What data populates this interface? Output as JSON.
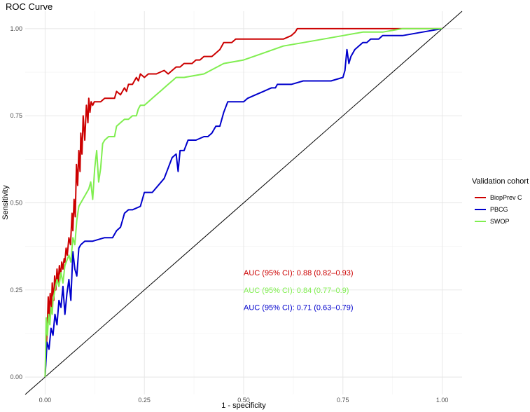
{
  "chart_data": {
    "type": "line",
    "title": "ROC Curve",
    "xlabel": "1 - specificity",
    "ylabel": "Sensitivity",
    "xlim": [
      -0.05,
      1.05
    ],
    "ylim": [
      -0.05,
      1.05
    ],
    "x_ticks": [
      0,
      0.25,
      0.5,
      0.75,
      1
    ],
    "x_tick_labels": [
      "0.00",
      "0.25",
      "0.50",
      "0.75",
      "1.00"
    ],
    "y_ticks": [
      0,
      0.25,
      0.5,
      0.75,
      1
    ],
    "y_tick_labels": [
      "0.00",
      "0.25",
      "0.50",
      "0.75",
      "1.00"
    ],
    "grid": true,
    "legend": {
      "title": "Validation cohort",
      "placement": "right"
    },
    "reference_line": {
      "x": [
        -0.05,
        1.05
      ],
      "y": [
        -0.05,
        1.05
      ],
      "color": "#000000"
    },
    "series": [
      {
        "name": "BiopPrev C",
        "color": "#cc0000",
        "x": [
          0,
          0.003,
          0.006,
          0.008,
          0.01,
          0.013,
          0.016,
          0.018,
          0.022,
          0.024,
          0.027,
          0.03,
          0.033,
          0.036,
          0.039,
          0.042,
          0.045,
          0.048,
          0.05,
          0.053,
          0.056,
          0.06,
          0.064,
          0.068,
          0.07,
          0.073,
          0.076,
          0.079,
          0.082,
          0.085,
          0.088,
          0.09,
          0.093,
          0.096,
          0.1,
          0.104,
          0.108,
          0.11,
          0.113,
          0.116,
          0.12,
          0.124,
          0.128,
          0.13,
          0.135,
          0.14,
          0.15,
          0.16,
          0.17,
          0.175,
          0.18,
          0.19,
          0.2,
          0.205,
          0.21,
          0.22,
          0.23,
          0.235,
          0.24,
          0.25,
          0.26,
          0.28,
          0.3,
          0.31,
          0.32,
          0.33,
          0.34,
          0.35,
          0.36,
          0.37,
          0.38,
          0.39,
          0.4,
          0.42,
          0.43,
          0.44,
          0.45,
          0.46,
          0.47,
          0.48,
          0.5,
          0.55,
          0.6,
          0.62,
          0.63,
          0.635,
          0.65,
          0.7,
          0.8,
          1.0
        ],
        "y": [
          0,
          0.08,
          0.16,
          0.23,
          0.17,
          0.24,
          0.2,
          0.27,
          0.22,
          0.29,
          0.25,
          0.31,
          0.27,
          0.32,
          0.29,
          0.33,
          0.31,
          0.34,
          0.33,
          0.37,
          0.35,
          0.4,
          0.38,
          0.47,
          0.42,
          0.51,
          0.46,
          0.61,
          0.55,
          0.65,
          0.59,
          0.7,
          0.64,
          0.75,
          0.68,
          0.78,
          0.73,
          0.8,
          0.76,
          0.79,
          0.78,
          0.79,
          0.79,
          0.79,
          0.79,
          0.79,
          0.8,
          0.8,
          0.8,
          0.8,
          0.82,
          0.81,
          0.83,
          0.82,
          0.84,
          0.84,
          0.86,
          0.85,
          0.87,
          0.86,
          0.87,
          0.87,
          0.88,
          0.87,
          0.88,
          0.89,
          0.89,
          0.9,
          0.9,
          0.9,
          0.91,
          0.91,
          0.92,
          0.92,
          0.93,
          0.94,
          0.96,
          0.96,
          0.96,
          0.97,
          0.97,
          0.97,
          0.97,
          0.98,
          0.99,
          1.0,
          1.0,
          1.0,
          1.0,
          1.0
        ]
      },
      {
        "name": "PBCG",
        "color": "#0000cc",
        "x": [
          0,
          0.005,
          0.01,
          0.015,
          0.02,
          0.025,
          0.03,
          0.035,
          0.04,
          0.045,
          0.05,
          0.055,
          0.06,
          0.065,
          0.07,
          0.075,
          0.08,
          0.085,
          0.09,
          0.1,
          0.12,
          0.15,
          0.17,
          0.18,
          0.19,
          0.195,
          0.2,
          0.21,
          0.22,
          0.24,
          0.25,
          0.27,
          0.3,
          0.31,
          0.32,
          0.33,
          0.335,
          0.34,
          0.35,
          0.36,
          0.38,
          0.4,
          0.41,
          0.42,
          0.43,
          0.44,
          0.45,
          0.46,
          0.47,
          0.48,
          0.5,
          0.51,
          0.53,
          0.55,
          0.57,
          0.58,
          0.585,
          0.6,
          0.62,
          0.65,
          0.7,
          0.72,
          0.75,
          0.755,
          0.76,
          0.765,
          0.77,
          0.78,
          0.8,
          0.81,
          0.82,
          0.83,
          0.84,
          0.85,
          0.9,
          0.95,
          1.0
        ],
        "y": [
          0,
          0.1,
          0.08,
          0.14,
          0.12,
          0.18,
          0.15,
          0.22,
          0.2,
          0.26,
          0.18,
          0.24,
          0.28,
          0.22,
          0.36,
          0.31,
          0.29,
          0.37,
          0.38,
          0.39,
          0.39,
          0.4,
          0.4,
          0.42,
          0.43,
          0.45,
          0.47,
          0.48,
          0.48,
          0.49,
          0.53,
          0.53,
          0.57,
          0.6,
          0.63,
          0.64,
          0.59,
          0.65,
          0.65,
          0.68,
          0.68,
          0.69,
          0.69,
          0.7,
          0.72,
          0.72,
          0.76,
          0.79,
          0.79,
          0.79,
          0.79,
          0.8,
          0.81,
          0.82,
          0.83,
          0.83,
          0.84,
          0.84,
          0.84,
          0.85,
          0.85,
          0.85,
          0.86,
          0.88,
          0.94,
          0.9,
          0.92,
          0.94,
          0.96,
          0.96,
          0.97,
          0.97,
          0.97,
          0.98,
          0.98,
          0.99,
          1.0
        ]
      },
      {
        "name": "SWOP",
        "color": "#80ee50",
        "x": [
          0,
          0.003,
          0.006,
          0.009,
          0.012,
          0.015,
          0.018,
          0.02,
          0.025,
          0.03,
          0.035,
          0.04,
          0.045,
          0.05,
          0.06,
          0.065,
          0.07,
          0.075,
          0.08,
          0.085,
          0.09,
          0.1,
          0.11,
          0.115,
          0.12,
          0.125,
          0.13,
          0.135,
          0.14,
          0.145,
          0.15,
          0.16,
          0.17,
          0.175,
          0.18,
          0.19,
          0.2,
          0.21,
          0.22,
          0.23,
          0.235,
          0.24,
          0.25,
          0.26,
          0.27,
          0.28,
          0.29,
          0.3,
          0.31,
          0.32,
          0.33,
          0.34,
          0.35,
          0.4,
          0.45,
          0.5,
          0.55,
          0.6,
          0.65,
          0.7,
          0.75,
          0.8,
          0.85,
          0.9,
          1.0
        ],
        "y": [
          0,
          0.17,
          0.12,
          0.18,
          0.15,
          0.2,
          0.18,
          0.22,
          0.25,
          0.28,
          0.26,
          0.3,
          0.27,
          0.32,
          0.35,
          0.33,
          0.4,
          0.38,
          0.45,
          0.49,
          0.5,
          0.52,
          0.54,
          0.56,
          0.51,
          0.6,
          0.65,
          0.56,
          0.6,
          0.67,
          0.68,
          0.69,
          0.69,
          0.69,
          0.72,
          0.73,
          0.74,
          0.74,
          0.75,
          0.75,
          0.77,
          0.78,
          0.78,
          0.79,
          0.8,
          0.81,
          0.82,
          0.83,
          0.84,
          0.85,
          0.86,
          0.86,
          0.86,
          0.87,
          0.9,
          0.91,
          0.93,
          0.95,
          0.96,
          0.97,
          0.98,
          0.99,
          0.99,
          1.0,
          1.0
        ]
      }
    ],
    "annotations": [
      {
        "text": "AUC (95% CI): 0.88 (0.82–0.93)",
        "x": 0.5,
        "y": 0.3,
        "color": "#cc0000"
      },
      {
        "text": "AUC (95% CI): 0.84 (0.77–0.9)",
        "x": 0.5,
        "y": 0.25,
        "color": "#80ee50"
      },
      {
        "text": "AUC (95% CI): 0.71 (0.63–0.79)",
        "x": 0.5,
        "y": 0.2,
        "color": "#0000cc"
      }
    ]
  }
}
